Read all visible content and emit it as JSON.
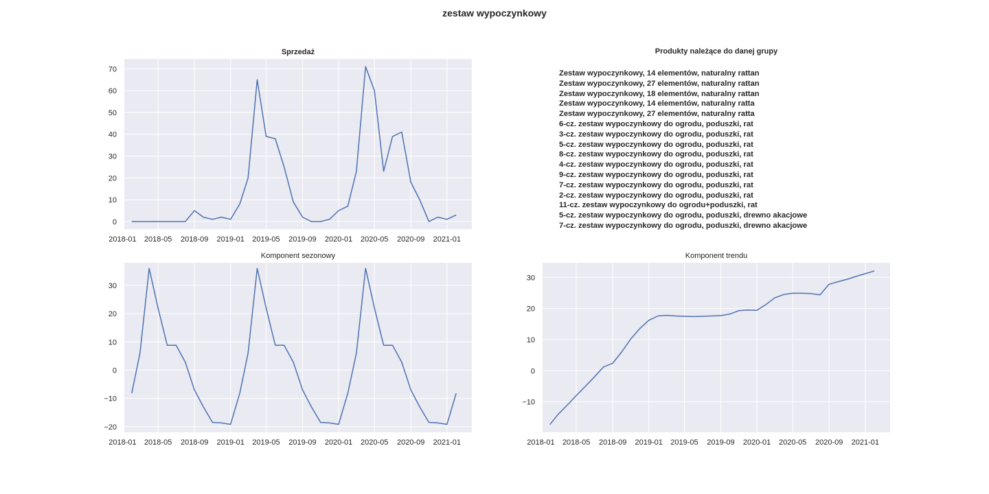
{
  "figure": {
    "title": "zestaw wypoczynkowy"
  },
  "colors": {
    "line": "#4c72b0",
    "panel_bg": "#eaeaf2",
    "grid": "#ffffff"
  },
  "products_panel": {
    "title": "Produkty należące do danej grupy",
    "items": [
      "Zestaw wypoczynkowy, 14 elementów, naturalny rattan",
      "Zestaw wypoczynkowy, 27 elementów, naturalny rattan",
      "Zestaw wypoczynkowy, 18 elementów, naturalny rattan",
      "Zestaw wypoczynkowy, 14 elementów, naturalny ratta",
      "Zestaw wypoczynkowy, 27 elementów, naturalny ratta",
      "6-cz. zestaw wypoczynkowy do ogrodu, poduszki, rat",
      "3-cz. zestaw wypoczynkowy do ogrodu, poduszki, rat",
      "5-cz. zestaw wypoczynkowy do ogrodu, poduszki, rat",
      "8-cz. zestaw wypoczynkowy do ogrodu, poduszki, rat",
      "4-cz. zestaw wypoczynkowy do ogrodu, poduszki, rat",
      "9-cz. zestaw wypoczynkowy do ogrodu, poduszki, rat",
      "7-cz. zestaw wypoczynkowy do ogrodu, poduszki, rat",
      "2-cz. zestaw wypoczynkowy do ogrodu, poduszki, rat",
      "11-cz. zestaw wypoczynkowy do ogrodu+poduszki, rat",
      "5-cz. zestaw wypoczynkowy do ogrodu, poduszki, drewno akacjowe",
      "7-cz. zestaw wypoczynkowy do ogrodu, poduszki, drewno akacjowe"
    ]
  },
  "chart_data": [
    {
      "type": "line",
      "title": "Sprzedaż",
      "title_bold": true,
      "xlabel": "",
      "ylabel": "",
      "x": [
        "2018-02",
        "2018-03",
        "2018-04",
        "2018-05",
        "2018-06",
        "2018-07",
        "2018-08",
        "2018-09",
        "2018-10",
        "2018-11",
        "2018-12",
        "2019-01",
        "2019-02",
        "2019-03",
        "2019-04",
        "2019-05",
        "2019-06",
        "2019-07",
        "2019-08",
        "2019-09",
        "2019-10",
        "2019-11",
        "2019-12",
        "2020-01",
        "2020-02",
        "2020-03",
        "2020-04",
        "2020-05",
        "2020-06",
        "2020-07",
        "2020-08",
        "2020-09",
        "2020-10",
        "2020-11",
        "2020-12",
        "2021-01",
        "2021-02"
      ],
      "values": [
        0,
        0,
        0,
        0,
        0,
        0,
        0,
        5,
        2,
        1,
        2,
        1,
        8,
        20,
        65,
        39,
        38,
        25,
        9,
        2,
        0,
        0,
        1,
        5,
        7,
        23,
        71,
        60,
        23,
        39,
        41,
        18,
        10,
        0,
        2,
        1,
        3
      ],
      "xlim": [
        "2018-01-07",
        "2021-03-26"
      ],
      "ylim": [
        -3.5,
        74.5
      ],
      "xticks": [
        "2018-01",
        "2018-05",
        "2018-09",
        "2019-01",
        "2019-05",
        "2019-09",
        "2020-01",
        "2020-05",
        "2020-09",
        "2021-01"
      ],
      "yticks": [
        0,
        10,
        20,
        30,
        40,
        50,
        60,
        70
      ],
      "grid": true
    },
    {
      "type": "line",
      "title": "Komponent sezonowy",
      "title_bold": false,
      "xlabel": "",
      "ylabel": "",
      "x": [
        "2018-02",
        "2018-03",
        "2018-04",
        "2018-05",
        "2018-06",
        "2018-07",
        "2018-08",
        "2018-09",
        "2018-10",
        "2018-11",
        "2018-12",
        "2019-01",
        "2019-02",
        "2019-03",
        "2019-04",
        "2019-05",
        "2019-06",
        "2019-07",
        "2019-08",
        "2019-09",
        "2019-10",
        "2019-11",
        "2019-12",
        "2020-01",
        "2020-02",
        "2020-03",
        "2020-04",
        "2020-05",
        "2020-06",
        "2020-07",
        "2020-08",
        "2020-09",
        "2020-10",
        "2020-11",
        "2020-12",
        "2021-01",
        "2021-02"
      ],
      "values": [
        -8.2,
        6,
        36,
        22,
        8.8,
        8.8,
        2.8,
        -7,
        -13,
        -18.5,
        -18.7,
        -19.2,
        -8.2,
        6,
        36,
        22,
        8.8,
        8.8,
        2.8,
        -7,
        -13,
        -18.5,
        -18.7,
        -19.2,
        -8.2,
        6,
        36,
        22,
        8.8,
        8.8,
        2.8,
        -7,
        -13,
        -18.5,
        -18.7,
        -19.2,
        -8.2
      ],
      "xlim": [
        "2018-01-07",
        "2021-03-26"
      ],
      "ylim": [
        -22,
        38
      ],
      "xticks": [
        "2018-01",
        "2018-05",
        "2018-09",
        "2019-01",
        "2019-05",
        "2019-09",
        "2020-01",
        "2020-05",
        "2020-09",
        "2021-01"
      ],
      "yticks": [
        -20,
        -10,
        0,
        10,
        20,
        30
      ],
      "grid": true
    },
    {
      "type": "line",
      "title": "Komponent trendu",
      "title_bold": false,
      "xlabel": "",
      "ylabel": "",
      "x": [
        "2018-02",
        "2018-03",
        "2018-04",
        "2018-05",
        "2018-06",
        "2018-07",
        "2018-08",
        "2018-09",
        "2018-10",
        "2018-11",
        "2018-12",
        "2019-01",
        "2019-02",
        "2019-03",
        "2019-04",
        "2019-05",
        "2019-06",
        "2019-07",
        "2019-08",
        "2019-09",
        "2019-10",
        "2019-11",
        "2019-12",
        "2020-01",
        "2020-02",
        "2020-03",
        "2020-04",
        "2020-05",
        "2020-06",
        "2020-07",
        "2020-08",
        "2020-09",
        "2020-10",
        "2020-11",
        "2020-12",
        "2021-01",
        "2021-02"
      ],
      "values": [
        -17.3,
        -14,
        -11,
        -8,
        -5,
        -2,
        1.2,
        2.4,
        6,
        10.2,
        13.5,
        16.2,
        17.6,
        17.8,
        17.6,
        17.5,
        17.4,
        17.5,
        17.6,
        17.7,
        18.2,
        19.3,
        19.5,
        19.4,
        21.3,
        23.4,
        24.5,
        24.9,
        24.9,
        24.8,
        24.4,
        27.8,
        28.6,
        29.4,
        30.3,
        31.2,
        32.1
      ],
      "xlim": [
        "2018-01-07",
        "2021-03-26"
      ],
      "ylim": [
        -19.8,
        34.7
      ],
      "xticks": [
        "2018-01",
        "2018-05",
        "2018-09",
        "2019-01",
        "2019-05",
        "2019-09",
        "2020-01",
        "2020-05",
        "2020-09",
        "2021-01"
      ],
      "yticks": [
        -10,
        0,
        10,
        20,
        30
      ],
      "grid": true
    }
  ]
}
